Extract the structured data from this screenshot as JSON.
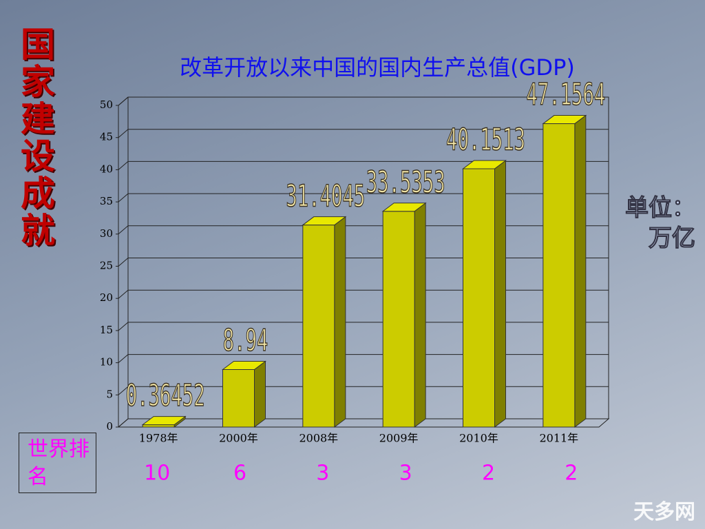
{
  "side_title": "国家建设成就",
  "unit_label": "单位：万亿",
  "rank_label": "世界排名",
  "ranks": [
    10,
    6,
    3,
    3,
    2,
    2
  ],
  "watermark": "天多网",
  "chart_data": {
    "type": "bar",
    "title": "改革开放以来中国的国内生产总值(GDP)",
    "categories": [
      "1978年",
      "2000年",
      "2008年",
      "2009年",
      "2010年",
      "2011年"
    ],
    "values": [
      0.36452,
      8.94,
      31.4045,
      33.5353,
      40.1513,
      47.1564
    ],
    "color": "#cccc00",
    "ylim": [
      0,
      50
    ],
    "yticks": [
      0,
      5,
      10,
      15,
      20,
      25,
      30,
      35,
      40,
      45,
      50
    ],
    "grid": true
  }
}
